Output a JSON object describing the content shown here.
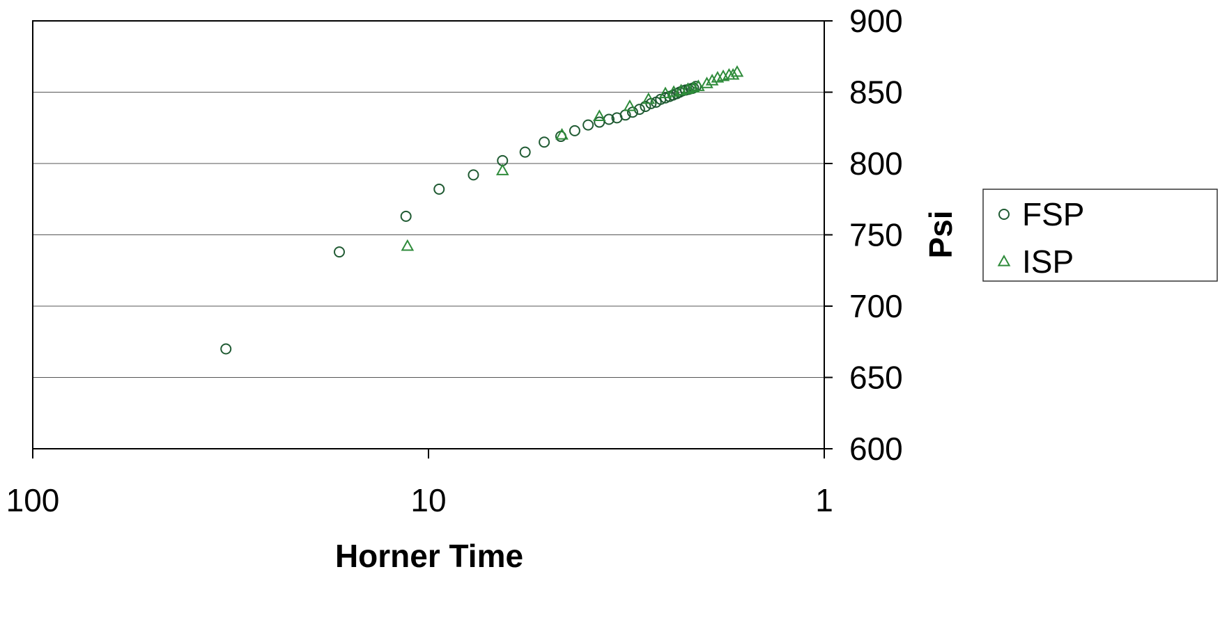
{
  "chart_data": {
    "type": "scatter",
    "title": "",
    "xlabel": "Horner Time",
    "ylabel": "Psi",
    "x_scale": "log",
    "x_reversed": true,
    "xlim": [
      100,
      1
    ],
    "ylim": [
      600,
      900
    ],
    "x_ticks": [
      100,
      10,
      1
    ],
    "x_tick_labels": [
      "100",
      "10",
      "1"
    ],
    "y_ticks": [
      600,
      650,
      700,
      750,
      800,
      850,
      900
    ],
    "y_tick_labels": [
      "600",
      "650",
      "700",
      "750",
      "800",
      "850",
      "900"
    ],
    "y_axis_side": "right",
    "grid": {
      "horizontal": true,
      "vertical": false
    },
    "legend": {
      "position": "right",
      "entries": [
        "FSP",
        "ISP"
      ]
    },
    "series": [
      {
        "name": "FSP",
        "marker": "circle",
        "color": "#1f5a32",
        "points": [
          [
            32.5,
            670
          ],
          [
            16.8,
            738
          ],
          [
            11.4,
            763
          ],
          [
            9.4,
            782
          ],
          [
            7.7,
            792
          ],
          [
            6.5,
            802
          ],
          [
            5.7,
            808
          ],
          [
            5.1,
            815
          ],
          [
            4.63,
            819
          ],
          [
            4.27,
            823
          ],
          [
            3.95,
            827
          ],
          [
            3.7,
            829
          ],
          [
            3.5,
            831
          ],
          [
            3.34,
            832
          ],
          [
            3.18,
            834
          ],
          [
            3.05,
            836
          ],
          [
            2.93,
            838
          ],
          [
            2.83,
            840
          ],
          [
            2.74,
            842
          ],
          [
            2.66,
            843
          ],
          [
            2.59,
            845
          ],
          [
            2.52,
            846
          ],
          [
            2.46,
            847
          ],
          [
            2.41,
            848
          ],
          [
            2.36,
            849
          ],
          [
            2.32,
            850
          ],
          [
            2.28,
            851
          ],
          [
            2.24,
            851.5
          ],
          [
            2.2,
            852
          ],
          [
            2.17,
            852.5
          ],
          [
            2.14,
            853
          ],
          [
            2.11,
            854
          ]
        ]
      },
      {
        "name": "ISP",
        "marker": "triangle",
        "color": "#2e8b3a",
        "points": [
          [
            11.3,
            742
          ],
          [
            6.5,
            795
          ],
          [
            4.6,
            820
          ],
          [
            3.7,
            833
          ],
          [
            3.1,
            840
          ],
          [
            2.78,
            845
          ],
          [
            2.52,
            849
          ],
          [
            2.4,
            850
          ],
          [
            2.3,
            851
          ],
          [
            2.21,
            852
          ],
          [
            2.14,
            853
          ],
          [
            2.08,
            854
          ],
          [
            1.98,
            856
          ],
          [
            1.92,
            858
          ],
          [
            1.86,
            860
          ],
          [
            1.8,
            861
          ],
          [
            1.74,
            862
          ],
          [
            1.7,
            862
          ],
          [
            1.66,
            864
          ]
        ]
      }
    ]
  }
}
